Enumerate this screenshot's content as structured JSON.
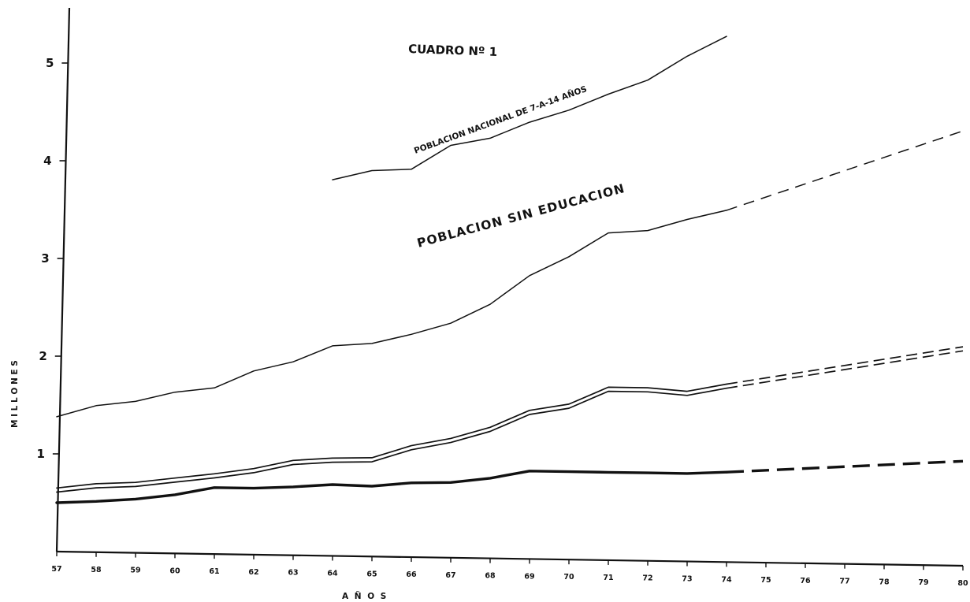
{
  "chart_data": {
    "type": "line",
    "title": "CUADRO Nº 1",
    "xlabel": "A Ñ O S",
    "ylabel": "M I L L O N E S",
    "x_tick_labels": [
      "57",
      "58",
      "59",
      "60",
      "61",
      "62",
      "63",
      "64",
      "65",
      "66",
      "67",
      "68",
      "69",
      "70",
      "71",
      "72",
      "73",
      "74",
      "75",
      "76",
      "77",
      "78",
      "79",
      "80"
    ],
    "y_tick_labels": [
      "1",
      "2",
      "3",
      "4",
      "5"
    ],
    "y_ticks": [
      1,
      2,
      3,
      4,
      5
    ],
    "xlim": [
      1957,
      1980
    ],
    "ylim": [
      0,
      5.5
    ],
    "grid": false,
    "series": [
      {
        "name": "POBLACION NACIONAL DE 7-A-14 AÑOS",
        "style": "thin",
        "x": [
          1964,
          1965,
          1966,
          1967,
          1968,
          1969,
          1970,
          1971,
          1972,
          1973,
          1974
        ],
        "values": [
          3.85,
          3.95,
          3.97,
          4.22,
          4.3,
          4.47,
          4.6,
          4.77,
          4.92,
          5.17,
          5.38
        ]
      },
      {
        "name": "POBLACION SIN EDUCACION",
        "style": "thin",
        "x": [
          1957,
          1958,
          1959,
          1960,
          1961,
          1962,
          1963,
          1964,
          1965,
          1966,
          1967,
          1968,
          1969,
          1970,
          1971,
          1972,
          1973,
          1974
        ],
        "values": [
          1.38,
          1.5,
          1.55,
          1.65,
          1.7,
          1.88,
          1.98,
          2.15,
          2.18,
          2.28,
          2.4,
          2.6,
          2.9,
          3.1,
          3.35,
          3.38,
          3.5,
          3.6
        ],
        "projection": {
          "x": [
            1974,
            1980
          ],
          "values": [
            3.6,
            4.45
          ]
        }
      },
      {
        "style": "double",
        "x": [
          1957,
          1958,
          1959,
          1960,
          1961,
          1962,
          1963,
          1964,
          1965,
          1966,
          1967,
          1968,
          1969,
          1970,
          1971,
          1972,
          1973,
          1974
        ],
        "values": [
          0.63,
          0.68,
          0.7,
          0.75,
          0.8,
          0.86,
          0.95,
          0.98,
          0.99,
          1.12,
          1.2,
          1.32,
          1.5,
          1.57,
          1.75,
          1.75,
          1.72,
          1.8
        ],
        "projection": {
          "x": [
            1974,
            1980
          ],
          "values": [
            1.8,
            2.22
          ]
        }
      },
      {
        "style": "thick",
        "x": [
          1957,
          1958,
          1959,
          1960,
          1961,
          1962,
          1963,
          1964,
          1965,
          1966,
          1967,
          1968,
          1969,
          1970,
          1971,
          1972,
          1973,
          1974
        ],
        "values": [
          0.5,
          0.52,
          0.55,
          0.6,
          0.68,
          0.68,
          0.7,
          0.73,
          0.72,
          0.76,
          0.77,
          0.82,
          0.9,
          0.9,
          0.9,
          0.9,
          0.9,
          0.92
        ],
        "projection": {
          "x": [
            1974,
            1980
          ],
          "values": [
            0.92,
            1.07
          ]
        }
      }
    ]
  }
}
